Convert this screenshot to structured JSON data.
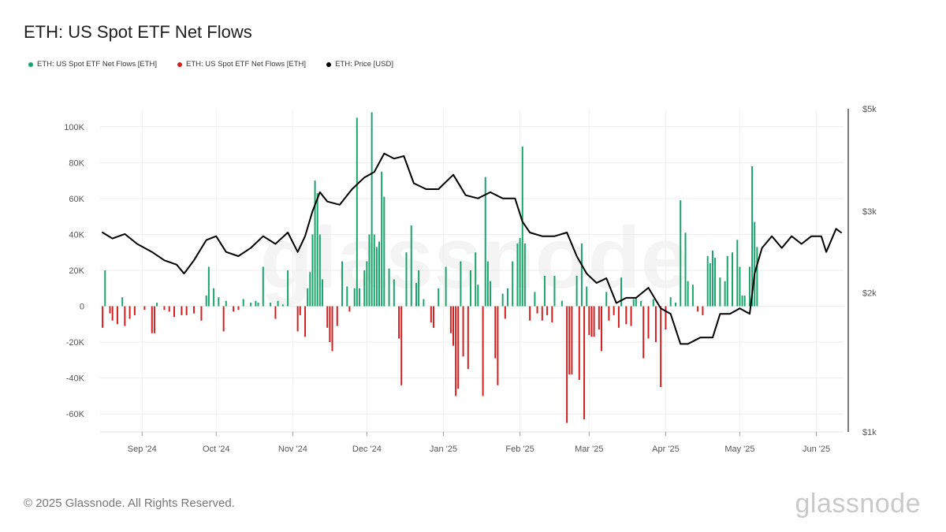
{
  "chart_data": {
    "type": "bar",
    "title": "ETH: US Spot ETF Net Flows",
    "legend_position": "top-left",
    "grid": true,
    "legend": [
      {
        "label": "ETH: US Spot ETF Net Flows [ETH]",
        "color": "#1aa36b"
      },
      {
        "label": "ETH: US Spot ETF Net Flows [ETH]",
        "color": "#d11f1f"
      },
      {
        "label": "ETH: Price [USD]",
        "color": "#000000"
      }
    ],
    "x_range": [
      "2024-08-15",
      "2025-06-12"
    ],
    "y_left_range": [
      -70000,
      110000
    ],
    "y_right_range": [
      1000,
      5000
    ],
    "y_right_scale": "log",
    "y_left_ticks": [
      {
        "value": 100000,
        "label": "100K"
      },
      {
        "value": 80000,
        "label": "80K"
      },
      {
        "value": 60000,
        "label": "60K"
      },
      {
        "value": 40000,
        "label": "40K"
      },
      {
        "value": 20000,
        "label": "20K"
      },
      {
        "value": 0,
        "label": "0"
      },
      {
        "value": -20000,
        "label": "-20K"
      },
      {
        "value": -40000,
        "label": "-40K"
      },
      {
        "value": -60000,
        "label": "-60K"
      }
    ],
    "y_right_ticks": [
      {
        "value": 5000,
        "label": "$5k"
      },
      {
        "value": 3000,
        "label": "$3k"
      },
      {
        "value": 2000,
        "label": "$2k"
      },
      {
        "value": 1000,
        "label": "$1k"
      }
    ],
    "x_ticks": [
      {
        "date": "2024-09-01",
        "label": "Sep '24"
      },
      {
        "date": "2024-10-01",
        "label": "Oct '24"
      },
      {
        "date": "2024-11-01",
        "label": "Nov '24"
      },
      {
        "date": "2024-12-01",
        "label": "Dec '24"
      },
      {
        "date": "2025-01-01",
        "label": "Jan '25"
      },
      {
        "date": "2025-02-01",
        "label": "Feb '25"
      },
      {
        "date": "2025-03-01",
        "label": "Mar '25"
      },
      {
        "date": "2025-04-01",
        "label": "Apr '25"
      },
      {
        "date": "2025-05-01",
        "label": "May '25"
      },
      {
        "date": "2025-06-01",
        "label": "Jun '25"
      }
    ],
    "series": [
      {
        "name": "ETH: US Spot ETF Net Flows [ETH]",
        "type": "bar",
        "positive_color": "#1aa36b",
        "negative_color": "#d11f1f",
        "points": [
          [
            "2024-08-16",
            -12000
          ],
          [
            "2024-08-17",
            20000
          ],
          [
            "2024-08-19",
            -4000
          ],
          [
            "2024-08-20",
            -8000
          ],
          [
            "2024-08-22",
            -10000
          ],
          [
            "2024-08-24",
            5000
          ],
          [
            "2024-08-25",
            -11000
          ],
          [
            "2024-08-27",
            -7000
          ],
          [
            "2024-08-29",
            -5000
          ],
          [
            "2024-09-02",
            -2000
          ],
          [
            "2024-09-05",
            -15000
          ],
          [
            "2024-09-06",
            -15000
          ],
          [
            "2024-09-07",
            2000
          ],
          [
            "2024-09-10",
            -2000
          ],
          [
            "2024-09-12",
            -3000
          ],
          [
            "2024-09-14",
            -6000
          ],
          [
            "2024-09-17",
            -5000
          ],
          [
            "2024-09-19",
            -5000
          ],
          [
            "2024-09-22",
            -4000
          ],
          [
            "2024-09-25",
            -8000
          ],
          [
            "2024-09-27",
            6000
          ],
          [
            "2024-09-28",
            22000
          ],
          [
            "2024-09-30",
            10000
          ],
          [
            "2024-10-02",
            5000
          ],
          [
            "2024-10-04",
            -14000
          ],
          [
            "2024-10-05",
            3000
          ],
          [
            "2024-10-08",
            -3000
          ],
          [
            "2024-10-10",
            -2000
          ],
          [
            "2024-10-12",
            4000
          ],
          [
            "2024-10-15",
            2000
          ],
          [
            "2024-10-17",
            3000
          ],
          [
            "2024-10-18",
            2000
          ],
          [
            "2024-10-20",
            22000
          ],
          [
            "2024-10-23",
            2000
          ],
          [
            "2024-10-25",
            -7000
          ],
          [
            "2024-10-26",
            3000
          ],
          [
            "2024-10-28",
            1000
          ],
          [
            "2024-10-30",
            20000
          ],
          [
            "2024-11-03",
            -14000
          ],
          [
            "2024-11-04",
            -5000
          ],
          [
            "2024-11-06",
            -17000
          ],
          [
            "2024-11-07",
            10000
          ],
          [
            "2024-11-08",
            19000
          ],
          [
            "2024-11-09",
            40000
          ],
          [
            "2024-11-10",
            70000
          ],
          [
            "2024-11-11",
            63000
          ],
          [
            "2024-11-12",
            40000
          ],
          [
            "2024-11-13",
            15000
          ],
          [
            "2024-11-15",
            -12000
          ],
          [
            "2024-11-16",
            -20000
          ],
          [
            "2024-11-17",
            -25000
          ],
          [
            "2024-11-19",
            -11000
          ],
          [
            "2024-11-21",
            25000
          ],
          [
            "2024-11-23",
            11000
          ],
          [
            "2024-11-24",
            -3000
          ],
          [
            "2024-11-26",
            10000
          ],
          [
            "2024-11-27",
            105000
          ],
          [
            "2024-11-28",
            10000
          ],
          [
            "2024-11-30",
            20000
          ],
          [
            "2024-12-01",
            25000
          ],
          [
            "2024-12-02",
            40000
          ],
          [
            "2024-12-03",
            108000
          ],
          [
            "2024-12-04",
            40000
          ],
          [
            "2024-12-05",
            33000
          ],
          [
            "2024-12-06",
            36000
          ],
          [
            "2024-12-07",
            75000
          ],
          [
            "2024-12-08",
            61000
          ],
          [
            "2024-12-10",
            21000
          ],
          [
            "2024-12-12",
            15000
          ],
          [
            "2024-12-14",
            -18000
          ],
          [
            "2024-12-15",
            -44000
          ],
          [
            "2024-12-17",
            30000
          ],
          [
            "2024-12-19",
            45000
          ],
          [
            "2024-12-21",
            13000
          ],
          [
            "2024-12-22",
            20000
          ],
          [
            "2024-12-24",
            4000
          ],
          [
            "2024-12-27",
            -9000
          ],
          [
            "2024-12-28",
            -12000
          ],
          [
            "2024-12-30",
            10000
          ],
          [
            "2025-01-02",
            22000
          ],
          [
            "2025-01-04",
            -15000
          ],
          [
            "2025-01-05",
            -22000
          ],
          [
            "2025-01-06",
            -50000
          ],
          [
            "2025-01-07",
            -46000
          ],
          [
            "2025-01-08",
            25000
          ],
          [
            "2025-01-09",
            -28000
          ],
          [
            "2025-01-11",
            -35000
          ],
          [
            "2025-01-12",
            20000
          ],
          [
            "2025-01-14",
            30000
          ],
          [
            "2025-01-15",
            12000
          ],
          [
            "2025-01-17",
            -50000
          ],
          [
            "2025-01-18",
            72000
          ],
          [
            "2025-01-19",
            25000
          ],
          [
            "2025-01-20",
            14000
          ],
          [
            "2025-01-22",
            -29000
          ],
          [
            "2025-01-23",
            -44000
          ],
          [
            "2025-01-25",
            7000
          ],
          [
            "2025-01-26",
            -7000
          ],
          [
            "2025-01-27",
            10000
          ],
          [
            "2025-01-29",
            25000
          ],
          [
            "2025-01-31",
            35000
          ],
          [
            "2025-02-01",
            38000
          ],
          [
            "2025-02-02",
            89000
          ],
          [
            "2025-02-03",
            35000
          ],
          [
            "2025-02-05",
            -8000
          ],
          [
            "2025-02-07",
            8000
          ],
          [
            "2025-02-08",
            -4000
          ],
          [
            "2025-02-10",
            -8000
          ],
          [
            "2025-02-11",
            17000
          ],
          [
            "2025-02-12",
            -5000
          ],
          [
            "2025-02-14",
            -9000
          ],
          [
            "2025-02-15",
            17000
          ],
          [
            "2025-02-18",
            3000
          ],
          [
            "2025-02-20",
            -65000
          ],
          [
            "2025-02-21",
            -38000
          ],
          [
            "2025-02-22",
            -38000
          ],
          [
            "2025-02-24",
            17000
          ],
          [
            "2025-02-25",
            -41000
          ],
          [
            "2025-02-26",
            35000
          ],
          [
            "2025-02-27",
            -63000
          ],
          [
            "2025-02-28",
            11000
          ],
          [
            "2025-03-01",
            -16000
          ],
          [
            "2025-03-02",
            -17000
          ],
          [
            "2025-03-03",
            -17000
          ],
          [
            "2025-03-05",
            -13000
          ],
          [
            "2025-03-06",
            -25000
          ],
          [
            "2025-03-08",
            8000
          ],
          [
            "2025-03-09",
            -8000
          ],
          [
            "2025-03-11",
            -5000
          ],
          [
            "2025-03-13",
            -12000
          ],
          [
            "2025-03-14",
            16000
          ],
          [
            "2025-03-16",
            -10000
          ],
          [
            "2025-03-18",
            -11000
          ],
          [
            "2025-03-19",
            4000
          ],
          [
            "2025-03-20",
            5000
          ],
          [
            "2025-03-22",
            3000
          ],
          [
            "2025-03-23",
            -29000
          ],
          [
            "2025-03-25",
            -18000
          ],
          [
            "2025-03-27",
            4000
          ],
          [
            "2025-03-28",
            -20000
          ],
          [
            "2025-03-30",
            -45000
          ],
          [
            "2025-04-01",
            -13000
          ],
          [
            "2025-04-03",
            5000
          ],
          [
            "2025-04-05",
            2000
          ],
          [
            "2025-04-07",
            59000
          ],
          [
            "2025-04-09",
            41000
          ],
          [
            "2025-04-10",
            14000
          ],
          [
            "2025-04-12",
            12000
          ],
          [
            "2025-04-14",
            -3000
          ],
          [
            "2025-04-16",
            -5000
          ],
          [
            "2025-04-18",
            28000
          ],
          [
            "2025-04-19",
            24000
          ],
          [
            "2025-04-20",
            31000
          ],
          [
            "2025-04-21",
            27000
          ],
          [
            "2025-04-23",
            16000
          ],
          [
            "2025-04-25",
            14000
          ],
          [
            "2025-04-26",
            28000
          ],
          [
            "2025-04-28",
            30000
          ],
          [
            "2025-04-30",
            37000
          ],
          [
            "2025-05-01",
            22000
          ],
          [
            "2025-05-02",
            6000
          ],
          [
            "2025-05-03",
            6000
          ],
          [
            "2025-05-05",
            22000
          ],
          [
            "2025-05-06",
            78000
          ],
          [
            "2025-05-07",
            47000
          ],
          [
            "2025-05-08",
            33000
          ]
        ]
      },
      {
        "name": "ETH: Price [USD]",
        "type": "line",
        "color": "#000000",
        "points": [
          [
            "2024-08-16",
            2700
          ],
          [
            "2024-08-20",
            2620
          ],
          [
            "2024-08-25",
            2680
          ],
          [
            "2024-08-30",
            2550
          ],
          [
            "2024-09-05",
            2450
          ],
          [
            "2024-09-10",
            2350
          ],
          [
            "2024-09-15",
            2300
          ],
          [
            "2024-09-18",
            2200
          ],
          [
            "2024-09-22",
            2350
          ],
          [
            "2024-09-27",
            2600
          ],
          [
            "2024-10-01",
            2650
          ],
          [
            "2024-10-05",
            2450
          ],
          [
            "2024-10-10",
            2400
          ],
          [
            "2024-10-15",
            2500
          ],
          [
            "2024-10-20",
            2650
          ],
          [
            "2024-10-25",
            2550
          ],
          [
            "2024-10-30",
            2700
          ],
          [
            "2024-11-03",
            2450
          ],
          [
            "2024-11-06",
            2650
          ],
          [
            "2024-11-09",
            3000
          ],
          [
            "2024-11-12",
            3300
          ],
          [
            "2024-11-15",
            3150
          ],
          [
            "2024-11-20",
            3100
          ],
          [
            "2024-11-25",
            3350
          ],
          [
            "2024-11-30",
            3550
          ],
          [
            "2024-12-04",
            3650
          ],
          [
            "2024-12-08",
            4000
          ],
          [
            "2024-12-12",
            3900
          ],
          [
            "2024-12-16",
            3950
          ],
          [
            "2024-12-20",
            3450
          ],
          [
            "2024-12-25",
            3350
          ],
          [
            "2024-12-30",
            3350
          ],
          [
            "2025-01-05",
            3600
          ],
          [
            "2025-01-10",
            3250
          ],
          [
            "2025-01-15",
            3200
          ],
          [
            "2025-01-20",
            3300
          ],
          [
            "2025-01-25",
            3200
          ],
          [
            "2025-01-30",
            3200
          ],
          [
            "2025-02-02",
            2850
          ],
          [
            "2025-02-05",
            2700
          ],
          [
            "2025-02-10",
            2650
          ],
          [
            "2025-02-15",
            2650
          ],
          [
            "2025-02-20",
            2700
          ],
          [
            "2025-02-24",
            2400
          ],
          [
            "2025-02-28",
            2200
          ],
          [
            "2025-03-04",
            2100
          ],
          [
            "2025-03-08",
            2150
          ],
          [
            "2025-03-12",
            1900
          ],
          [
            "2025-03-16",
            1950
          ],
          [
            "2025-03-20",
            1950
          ],
          [
            "2025-03-25",
            2050
          ],
          [
            "2025-03-30",
            1850
          ],
          [
            "2025-04-03",
            1800
          ],
          [
            "2025-04-07",
            1550
          ],
          [
            "2025-04-10",
            1550
          ],
          [
            "2025-04-15",
            1600
          ],
          [
            "2025-04-20",
            1600
          ],
          [
            "2025-04-23",
            1800
          ],
          [
            "2025-04-27",
            1800
          ],
          [
            "2025-05-01",
            1850
          ],
          [
            "2025-05-05",
            1800
          ],
          [
            "2025-05-07",
            2200
          ],
          [
            "2025-05-10",
            2500
          ],
          [
            "2025-05-14",
            2650
          ],
          [
            "2025-05-18",
            2500
          ],
          [
            "2025-05-22",
            2650
          ],
          [
            "2025-05-26",
            2550
          ],
          [
            "2025-05-30",
            2650
          ],
          [
            "2025-06-03",
            2650
          ],
          [
            "2025-06-05",
            2450
          ],
          [
            "2025-06-09",
            2750
          ],
          [
            "2025-06-11",
            2700
          ]
        ]
      }
    ]
  },
  "footer": {
    "copyright": "© 2025 Glassnode. All Rights Reserved.",
    "brand": "glassnode"
  },
  "watermark": "glassnode"
}
